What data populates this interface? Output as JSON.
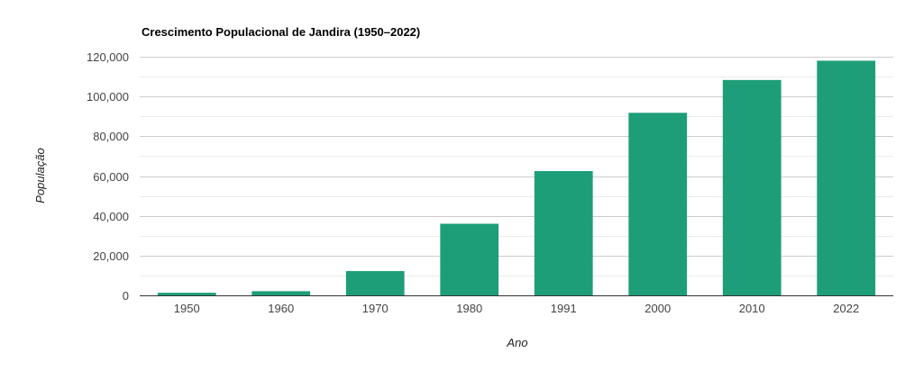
{
  "chart_data": {
    "type": "bar",
    "title": "Crescimento Populacional de Jandira (1950–2022)",
    "xlabel": "Ano",
    "ylabel": "População",
    "categories": [
      "1950",
      "1960",
      "1970",
      "1980",
      "1991",
      "2000",
      "2010",
      "2022"
    ],
    "values": [
      1300,
      2100,
      12200,
      36000,
      62500,
      91800,
      108300,
      118000
    ],
    "ylim": [
      0,
      120000
    ],
    "yticks": [
      0,
      20000,
      40000,
      60000,
      80000,
      100000,
      120000
    ],
    "ytick_labels": [
      "0",
      "20,000",
      "40,000",
      "60,000",
      "80,000",
      "100,000",
      "120,000"
    ],
    "grid": true,
    "colors": {
      "bar": "#1e9e78"
    }
  }
}
